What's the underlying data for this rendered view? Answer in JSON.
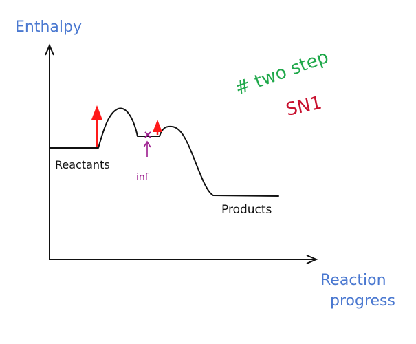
{
  "axes": {
    "y_label": "Enthalpy",
    "x_label_line1": "Reaction",
    "x_label_line2": "progress"
  },
  "labels": {
    "reactants": "Reactants",
    "products": "Products",
    "intermediate": "inf"
  },
  "annotations": {
    "title": "# two step",
    "mechanism": "SN1"
  },
  "colors": {
    "axis_label": "#4a78d0",
    "curve": "#111111",
    "arrow_red": "#ff1a1a",
    "intermediate": "#9b1a8c",
    "title_green": "#1fa84a",
    "mechanism_red": "#c8102e"
  }
}
